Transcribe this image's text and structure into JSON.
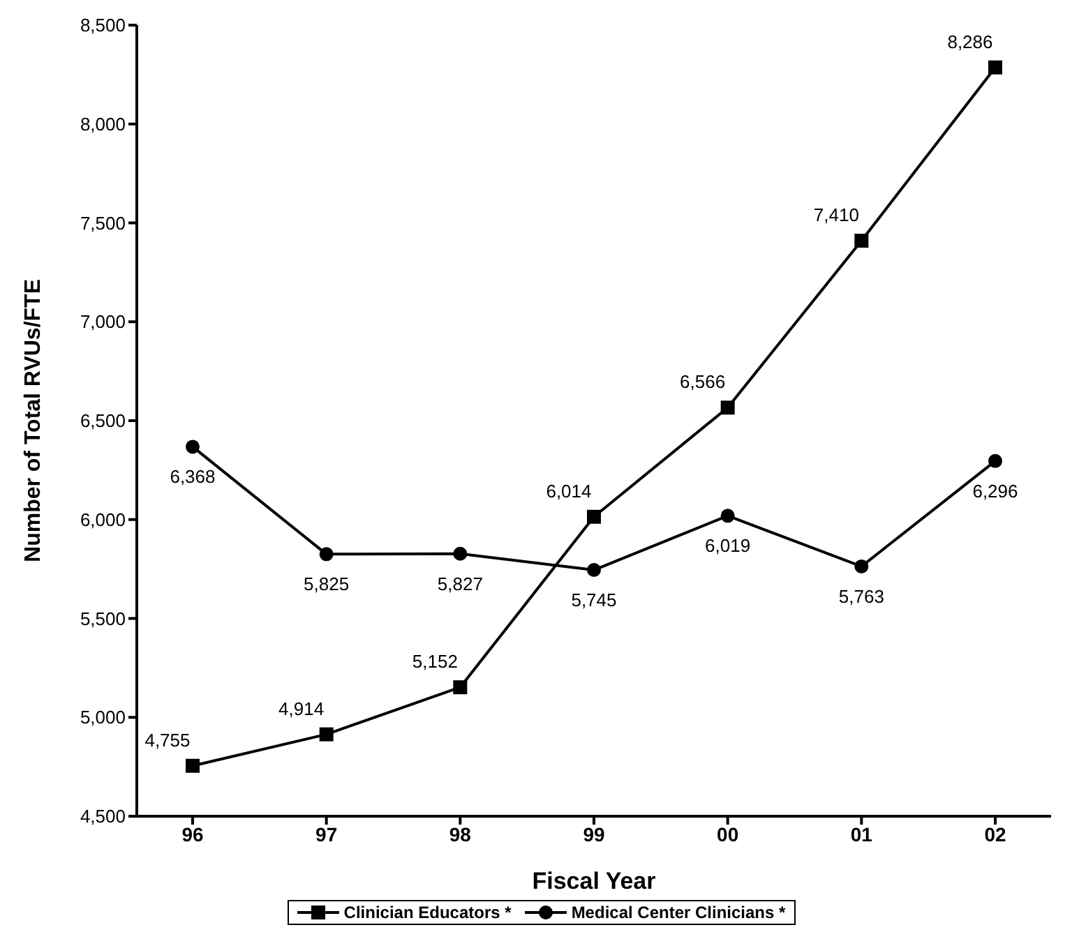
{
  "chart_data": {
    "type": "line",
    "xlabel": "Fiscal Year",
    "ylabel": "Number of Total RVUs/FTE",
    "categories": [
      "96",
      "97",
      "98",
      "99",
      "00",
      "01",
      "02"
    ],
    "series": [
      {
        "name": "Clinician Educators *",
        "color": "#000000",
        "marker": "square",
        "values": [
          4755,
          4914,
          5152,
          6014,
          6566,
          7410,
          8286
        ],
        "value_labels": [
          "4,755",
          "4,914",
          "5,152",
          "6,014",
          "6,566",
          "7,410",
          "8,286"
        ]
      },
      {
        "name": "Medical Center Clinicians *",
        "color": "#000000",
        "marker": "circle",
        "values": [
          6368,
          5825,
          5827,
          5745,
          6019,
          5763,
          6296
        ],
        "value_labels": [
          "6,368",
          "5,825",
          "5,827",
          "5,745",
          "6,019",
          "5,763",
          "6,296"
        ]
      }
    ],
    "ylim": [
      4500,
      8500
    ],
    "yticks": [
      {
        "value": 4500,
        "label": "4,500"
      },
      {
        "value": 5000,
        "label": "5,000"
      },
      {
        "value": 5500,
        "label": "5,500"
      },
      {
        "value": 6000,
        "label": "6,000"
      },
      {
        "value": 6500,
        "label": "6,500"
      },
      {
        "value": 7000,
        "label": "7,000"
      },
      {
        "value": 7500,
        "label": "7,500"
      },
      {
        "value": 8000,
        "label": "8,000"
      },
      {
        "value": 8500,
        "label": "8,500"
      }
    ],
    "legend": "bottom",
    "line_style": "solid"
  }
}
